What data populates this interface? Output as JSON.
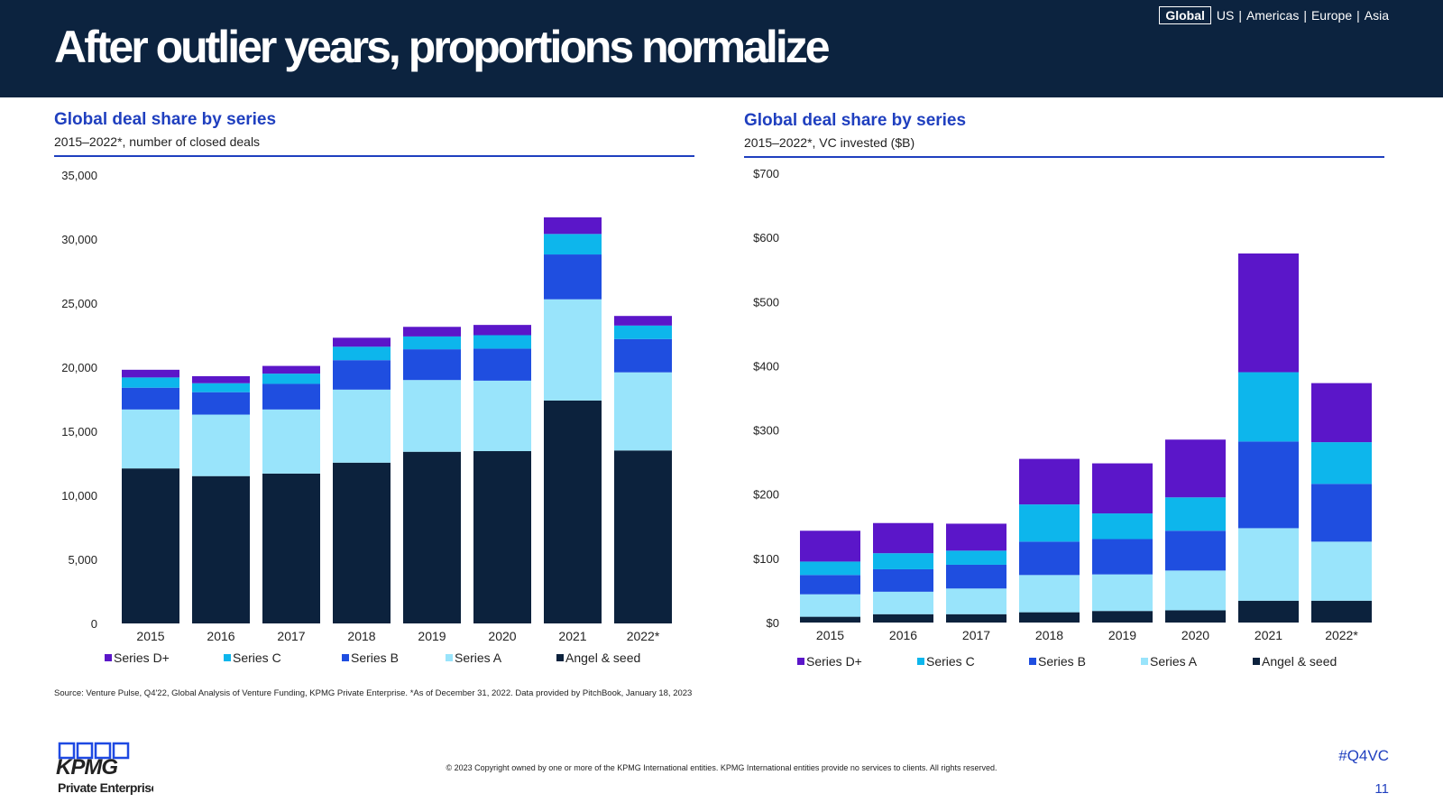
{
  "header": {
    "title": "After outlier years, proportions normalize",
    "regions": {
      "active": "Global",
      "others": [
        "US",
        "Americas",
        "Europe",
        "Asia"
      ]
    }
  },
  "colors": {
    "header_bg": "#0c233f",
    "accent": "#1f3fbf",
    "series": {
      "Angel & seed": "#0c223d",
      "Series A": "#99e4fb",
      "Series B": "#1f4ee0",
      "Series C": "#0db6ec",
      "Series D+": "#5b16c9"
    }
  },
  "panels": [
    {
      "title": "Global deal share by series",
      "subtitle": "2015–2022*, number of closed deals"
    },
    {
      "title": "Global deal share by series",
      "subtitle": "2015–2022*, VC invested ($B)"
    }
  ],
  "chart_data": [
    {
      "type": "bar",
      "stacked": true,
      "title": "Global deal share by series",
      "subtitle": "2015–2022*, number of closed deals",
      "categories": [
        "2015",
        "2016",
        "2017",
        "2018",
        "2019",
        "2020",
        "2021",
        "2022*"
      ],
      "ylim": [
        0,
        35000
      ],
      "yticks": [
        "0",
        "5,000",
        "10,000",
        "15,000",
        "20,000",
        "25,000",
        "30,000",
        "35,000"
      ],
      "ytick_values": [
        0,
        5000,
        10000,
        15000,
        20000,
        25000,
        30000,
        35000
      ],
      "series": [
        {
          "name": "Angel & seed",
          "values": [
            12100,
            11500,
            11700,
            12550,
            13400,
            13450,
            17400,
            13500
          ]
        },
        {
          "name": "Series A",
          "values": [
            4600,
            4800,
            5000,
            5700,
            5600,
            5500,
            7900,
            6100
          ]
        },
        {
          "name": "Series B",
          "values": [
            1700,
            1750,
            2000,
            2300,
            2400,
            2500,
            3500,
            2600
          ]
        },
        {
          "name": "Series C",
          "values": [
            800,
            700,
            800,
            1050,
            1000,
            1050,
            1600,
            1050
          ]
        },
        {
          "name": "Series D+",
          "values": [
            600,
            550,
            600,
            700,
            750,
            800,
            1300,
            750
          ]
        }
      ],
      "legend": [
        "Series D+",
        "Series C",
        "Series B",
        "Series A",
        "Angel & seed"
      ],
      "legend_position": "bottom",
      "grid": false
    },
    {
      "type": "bar",
      "stacked": true,
      "title": "Global deal share by series",
      "subtitle": "2015–2022*, VC invested ($B)",
      "categories": [
        "2015",
        "2016",
        "2017",
        "2018",
        "2019",
        "2020",
        "2021",
        "2022*"
      ],
      "ylim": [
        0,
        700
      ],
      "yticks": [
        "$0",
        "$100",
        "$200",
        "$300",
        "$400",
        "$500",
        "$600",
        "$700"
      ],
      "ytick_values": [
        0,
        100,
        200,
        300,
        400,
        500,
        600,
        700
      ],
      "series": [
        {
          "name": "Angel & seed",
          "values": [
            9,
            13,
            13,
            16,
            18,
            19,
            34,
            34
          ]
        },
        {
          "name": "Series A",
          "values": [
            35,
            35,
            40,
            58,
            57,
            62,
            113,
            92
          ]
        },
        {
          "name": "Series B",
          "values": [
            30,
            35,
            37,
            52,
            55,
            62,
            135,
            90
          ]
        },
        {
          "name": "Series C",
          "values": [
            21,
            25,
            22,
            58,
            40,
            52,
            108,
            65
          ]
        },
        {
          "name": "Series D+",
          "values": [
            48,
            47,
            42,
            71,
            78,
            90,
            185,
            92
          ]
        }
      ],
      "legend": [
        "Series D+",
        "Series C",
        "Series B",
        "Series A",
        "Angel & seed"
      ],
      "legend_position": "bottom",
      "grid": false
    }
  ],
  "footer": {
    "source": "Source: Venture Pulse, Q4'22, Global Analysis of Venture Funding, KPMG Private Enterprise. *As of December 31, 2022. Data provided by PitchBook, January 18, 2023",
    "copyright": "© 2023 Copyright owned by one or more of the KPMG International entities. KPMG International entities provide no services to clients. All rights reserved.",
    "hashtag": "#Q4VC",
    "page_number": "11",
    "logo_text": "KPMG",
    "logo_sub": "Private Enterprise"
  }
}
